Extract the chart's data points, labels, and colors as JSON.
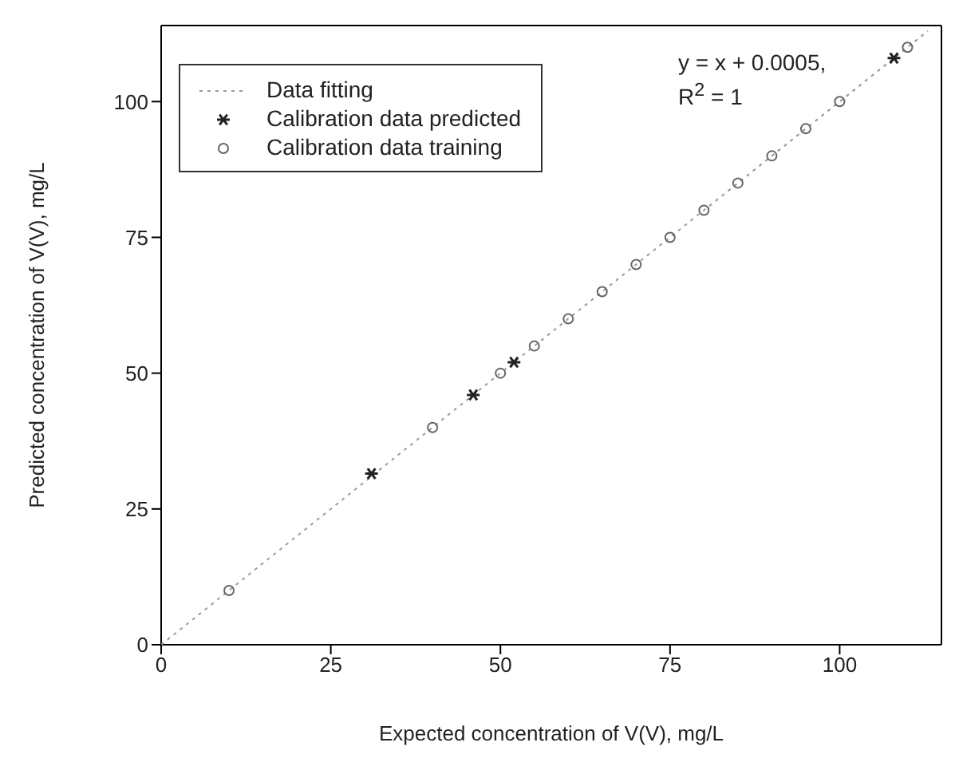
{
  "chart_data": {
    "type": "scatter",
    "xlabel": "Expected concentration of V(V), mg/L",
    "ylabel": "Predicted concentration of V(V), mg/L",
    "xlim": [
      0,
      115
    ],
    "ylim": [
      0,
      114
    ],
    "xticks": [
      0,
      25,
      50,
      75,
      100
    ],
    "yticks": [
      0,
      25,
      50,
      75,
      100
    ],
    "legend": "top left",
    "grid": false,
    "annotations": [
      "y = x + 0.0005,",
      "R$^{2}$ = 1"
    ],
    "series": [
      {
        "name": "Data fitting",
        "type": "line",
        "color": "#999999",
        "line_style": "dotted",
        "marker": "none",
        "x": [
          0,
          113
        ],
        "values": [
          0,
          113
        ]
      },
      {
        "name": "Calibration data predicted",
        "type": "scatter",
        "color": "#222222",
        "marker": "cross",
        "x": [
          31,
          46,
          52,
          108
        ],
        "values": [
          31.5,
          46,
          52,
          108
        ]
      },
      {
        "name": "Calibration data training",
        "type": "scatter",
        "color": "#666666",
        "marker": "circle",
        "x": [
          10,
          40,
          50,
          55,
          60,
          65,
          70,
          75,
          80,
          85,
          90,
          95,
          100,
          110
        ],
        "values": [
          10,
          40,
          50,
          55,
          60,
          65,
          70,
          75,
          80,
          85,
          90,
          95,
          100,
          110
        ]
      }
    ]
  }
}
